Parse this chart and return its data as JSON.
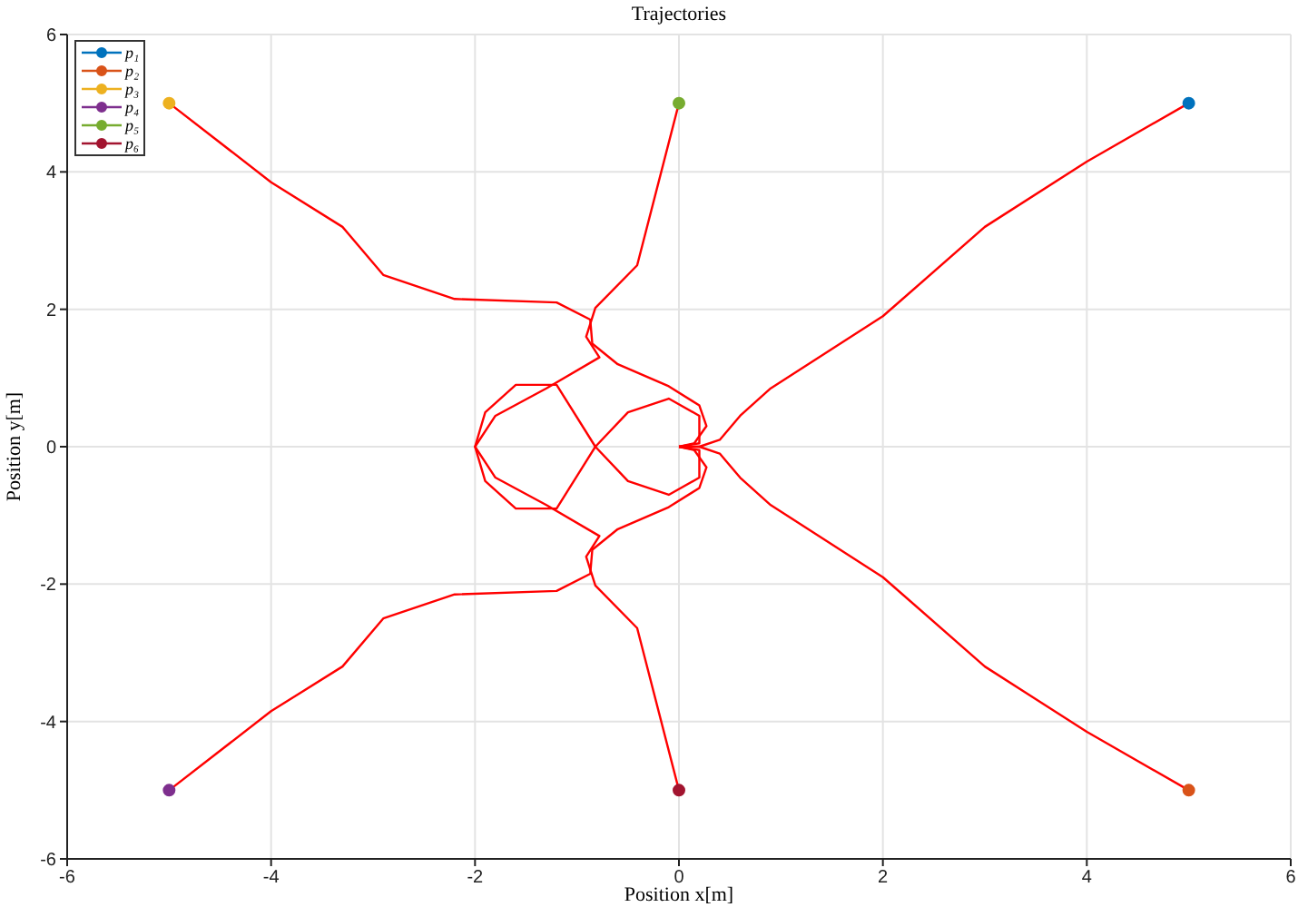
{
  "chart_data": {
    "type": "line",
    "title": "Trajectories",
    "xlabel": "Position x[m]",
    "ylabel": "Position y[m]",
    "xlim": [
      -6,
      6
    ],
    "xticks": [
      -6,
      -4,
      -2,
      0,
      2,
      4,
      6
    ],
    "ylim": [
      -6,
      6
    ],
    "yticks": [
      -6,
      -4,
      -2,
      0,
      2,
      4,
      6
    ],
    "grid": true,
    "legend": "top left",
    "series": [
      {
        "name": "p₁",
        "color": "#0072bd",
        "marker": "circle",
        "x": [
          5
        ],
        "values": [
          5
        ]
      },
      {
        "name": "p₂",
        "color": "#d95319",
        "marker": "circle",
        "x": [
          5
        ],
        "values": [
          -5
        ]
      },
      {
        "name": "p₃",
        "color": "#edb120",
        "marker": "circle",
        "x": [
          -5
        ],
        "values": [
          5
        ]
      },
      {
        "name": "p₄",
        "color": "#7e2f8e",
        "marker": "circle",
        "x": [
          -5
        ],
        "values": [
          -5
        ]
      },
      {
        "name": "p₅",
        "color": "#77ac30",
        "marker": "circle",
        "x": [
          0
        ],
        "values": [
          5
        ]
      },
      {
        "name": "p₆",
        "color": "#a2142f",
        "marker": "circle",
        "x": [
          0
        ],
        "values": [
          -5
        ]
      },
      {
        "color": "#ff0000",
        "marker": "none",
        "x": [
          5,
          4,
          3,
          2,
          0.9,
          0.6,
          0.4,
          0.2,
          0
        ],
        "values": [
          5,
          4.15,
          3.2,
          1.9,
          0.85,
          0.45,
          0.1,
          0,
          0
        ]
      },
      {
        "color": "#ff0000",
        "marker": "none",
        "x": [
          5,
          4,
          3,
          2,
          0.9,
          0.6,
          0.4,
          0.2,
          0
        ],
        "values": [
          -5,
          -4.15,
          -3.2,
          -1.9,
          -0.85,
          -0.45,
          -0.1,
          0,
          0
        ]
      },
      {
        "color": "#ff0000",
        "marker": "none",
        "x": [
          -5,
          -4,
          -3.3,
          -2.9,
          -2.2,
          -1.2,
          -0.87,
          -0.85,
          -0.6,
          -0.1,
          0.2,
          0.27,
          0.15,
          0
        ],
        "values": [
          5,
          3.85,
          3.2,
          2.5,
          2.15,
          2.1,
          1.85,
          1.5,
          1.2,
          0.88,
          0.6,
          0.3,
          0.05,
          0
        ]
      },
      {
        "color": "#ff0000",
        "marker": "none",
        "x": [
          -5,
          -4,
          -3.3,
          -2.9,
          -2.2,
          -1.2,
          -0.87,
          -0.85,
          -0.6,
          -0.1,
          0.2,
          0.27,
          0.15,
          0
        ],
        "values": [
          -5,
          -3.85,
          -3.2,
          -2.5,
          -2.15,
          -2.1,
          -1.85,
          -1.5,
          -1.2,
          -0.88,
          -0.6,
          -0.3,
          -0.05,
          0
        ]
      },
      {
        "color": "#ff0000",
        "marker": "none",
        "x": [
          0,
          -0.41,
          -0.82,
          -0.91,
          -0.78,
          -1.3,
          -1.8,
          -2,
          -1.9,
          -1.6,
          -1.2,
          -0.82,
          -0.5,
          -0.1,
          0.2,
          0.2,
          0
        ],
        "values": [
          5,
          2.64,
          2.02,
          1.6,
          1.3,
          0.85,
          0.45,
          0,
          -0.5,
          -0.9,
          -0.9,
          0,
          0.5,
          0.7,
          0.45,
          0.05,
          0
        ]
      },
      {
        "color": "#ff0000",
        "marker": "none",
        "x": [
          0,
          -0.41,
          -0.82,
          -0.91,
          -0.78,
          -1.3,
          -1.8,
          -2,
          -1.9,
          -1.6,
          -1.2,
          -0.82,
          -0.5,
          -0.1,
          0.2,
          0.2,
          0
        ],
        "values": [
          -5,
          -2.64,
          -2.02,
          -1.6,
          -1.3,
          -0.85,
          -0.45,
          0,
          0.5,
          0.9,
          0.9,
          0,
          -0.5,
          -0.7,
          -0.45,
          -0.05,
          0
        ]
      }
    ]
  }
}
